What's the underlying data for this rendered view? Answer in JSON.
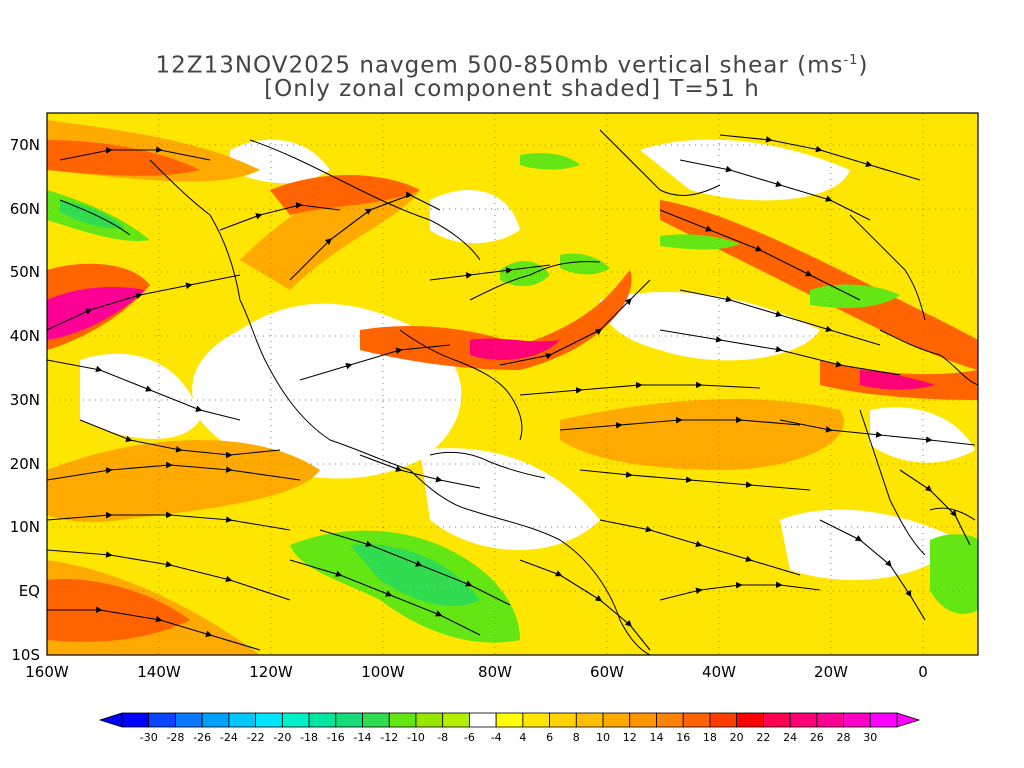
{
  "title": {
    "line1_prefix": "12Z13NOV2025 navgem 500-850mb vertical shear (ms",
    "line1_sup": "-1",
    "line1_suffix": ")",
    "line2": "[Only zonal component shaded] T=51 h"
  },
  "axes": {
    "lat_labels": [
      "70N",
      "60N",
      "50N",
      "40N",
      "30N",
      "20N",
      "10N",
      "EQ",
      "10S"
    ],
    "lon_labels": [
      "160W",
      "140W",
      "120W",
      "100W",
      "80W",
      "60W",
      "40W",
      "20W",
      "0"
    ]
  },
  "colorbar": {
    "labels": [
      "-30",
      "-28",
      "-26",
      "-24",
      "-22",
      "-20",
      "-18",
      "-16",
      "-14",
      "-12",
      "-10",
      "-8",
      "-6",
      "-4",
      "4",
      "6",
      "8",
      "10",
      "12",
      "14",
      "16",
      "18",
      "20",
      "22",
      "24",
      "26",
      "28",
      "30"
    ],
    "colors": [
      "#0000ff",
      "#0a46ff",
      "#0a78ff",
      "#00a0ff",
      "#00c8ff",
      "#00e6ff",
      "#00f0c8",
      "#00e6a0",
      "#14dc78",
      "#32dc50",
      "#64e614",
      "#96e600",
      "#b4f000",
      "#ffffff",
      "#ffff00",
      "#ffe600",
      "#ffd200",
      "#ffbe00",
      "#ffaa00",
      "#ff9600",
      "#ff8200",
      "#ff6400",
      "#ff3c00",
      "#ff0000",
      "#ff0050",
      "#ff0078",
      "#ff0096",
      "#ff00c8",
      "#ff00ff"
    ],
    "left_color": "#0000ff",
    "right_color": "#ff00ff"
  },
  "colors": {
    "land_outline": "#000000",
    "grid": "#7f7f7f"
  }
}
